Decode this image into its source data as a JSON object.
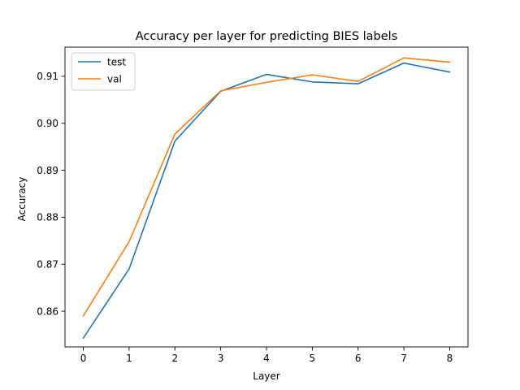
{
  "chart_data": {
    "type": "line",
    "title": "Accuracy per layer for predicting BIES labels",
    "xlabel": "Layer",
    "ylabel": "Accuracy",
    "x": [
      0,
      1,
      2,
      3,
      4,
      5,
      6,
      7,
      8
    ],
    "xlim": [
      -0.4,
      8.4
    ],
    "ylim": [
      0.8524,
      0.9162
    ],
    "xticks": [
      "0",
      "1",
      "2",
      "3",
      "4",
      "5",
      "6",
      "7",
      "8"
    ],
    "yticks": [
      0.86,
      0.87,
      0.88,
      0.89,
      0.9,
      0.91
    ],
    "ytick_labels": [
      "0.86",
      "0.87",
      "0.88",
      "0.89",
      "0.90",
      "0.91"
    ],
    "grid": false,
    "legend_position": "upper-left",
    "series": [
      {
        "name": "test",
        "color": "#1f77b4",
        "values": [
          0.8543,
          0.869,
          0.8962,
          0.9068,
          0.9104,
          0.9088,
          0.9084,
          0.9128,
          0.9109
        ]
      },
      {
        "name": "val",
        "color": "#ff7f0e",
        "values": [
          0.859,
          0.8748,
          0.8977,
          0.9069,
          0.9087,
          0.9103,
          0.9089,
          0.9139,
          0.913
        ]
      }
    ]
  }
}
